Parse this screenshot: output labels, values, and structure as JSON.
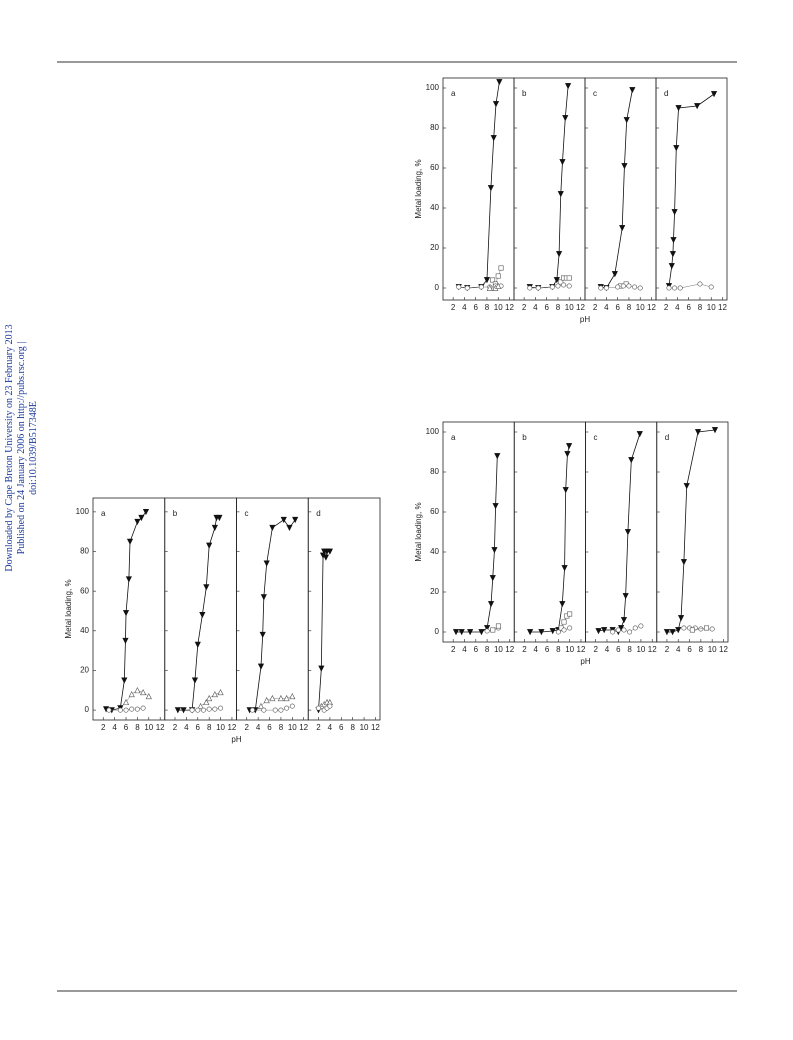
{
  "side_text": [
    "Downloaded by Cape Breton University on 23 February 2013",
    "Published on 24 January 2006 on http://pubs.rsc.org | doi:10.1039/B517348E"
  ],
  "chart_data": [
    {
      "type": "line",
      "ylabel": "Metal loading, %",
      "xlabel": "pH",
      "ylim": [
        -6,
        105
      ],
      "xlim": [
        0.2,
        12.8
      ],
      "yticks": [
        0,
        20,
        40,
        60,
        80,
        100
      ],
      "xticks": [
        2,
        4,
        6,
        8,
        10,
        12
      ],
      "panels": [
        {
          "label": "a",
          "series": [
            {
              "marker": "down-triangle-filled",
              "x": [
                3,
                4.5,
                7,
                8,
                8.7,
                9.2,
                9.6,
                10.2
              ],
              "values": [
                0.5,
                0,
                0.5,
                4,
                50,
                75,
                92,
                103
              ]
            },
            {
              "marker": "square-open",
              "x": [
                9,
                9.5,
                10,
                10.5
              ],
              "values": [
                4,
                2,
                6,
                10
              ]
            },
            {
              "marker": "circle-open",
              "x": [
                3,
                4.5,
                7,
                8.5,
                9.5,
                10.5
              ],
              "values": [
                0.5,
                0,
                0.5,
                0.5,
                1,
                1
              ]
            },
            {
              "marker": "up-triangle-open",
              "x": [
                8.5,
                9.5,
                10
              ],
              "values": [
                0,
                0,
                1
              ]
            }
          ]
        },
        {
          "label": "b",
          "series": [
            {
              "marker": "down-triangle-filled",
              "x": [
                3,
                4.5,
                7,
                7.8,
                8.2,
                8.5,
                8.8,
                9.3,
                9.8
              ],
              "values": [
                0.5,
                0,
                0.5,
                4,
                17,
                47,
                63,
                85,
                101
              ]
            },
            {
              "marker": "square-open",
              "x": [
                8.5,
                9,
                9.5,
                10
              ],
              "values": [
                3,
                5,
                5,
                5
              ]
            },
            {
              "marker": "circle-open",
              "x": [
                3,
                4.5,
                7,
                8,
                9,
                10
              ],
              "values": [
                0,
                0,
                0.5,
                1,
                1.5,
                1
              ]
            }
          ]
        },
        {
          "label": "c",
          "series": [
            {
              "marker": "down-triangle-filled",
              "x": [
                3,
                4,
                5.5,
                6.8,
                7.2,
                7.6,
                8.6
              ],
              "values": [
                0.5,
                0,
                7,
                30,
                61,
                84,
                99
              ]
            },
            {
              "marker": "square-open",
              "x": [
                6.5,
                7.5
              ],
              "values": [
                1,
                2
              ]
            },
            {
              "marker": "circle-open",
              "x": [
                3,
                4,
                6,
                7,
                8,
                9,
                10
              ],
              "values": [
                0,
                0,
                0.5,
                1,
                1,
                0.5,
                0
              ]
            }
          ]
        },
        {
          "label": "d",
          "series": [
            {
              "marker": "down-triangle-filled",
              "x": [
                2.5,
                3,
                3.2,
                3.3,
                3.5,
                3.8,
                4.2,
                7.5,
                10.5
              ],
              "values": [
                1,
                11,
                17,
                24,
                38,
                70,
                90,
                91,
                97
              ]
            },
            {
              "marker": "circle-open",
              "x": [
                2.5,
                3.5,
                4.5,
                8,
                10
              ],
              "values": [
                0,
                0,
                0,
                2,
                0.5
              ]
            }
          ]
        }
      ]
    },
    {
      "type": "line",
      "ylabel": "Metal loading, %",
      "xlabel": "pH",
      "ylim": [
        -5,
        107
      ],
      "xlim": [
        0.2,
        12.8
      ],
      "yticks": [
        0,
        20,
        40,
        60,
        80,
        100
      ],
      "xticks": [
        2,
        4,
        6,
        8,
        10,
        12
      ],
      "panels": [
        {
          "label": "a",
          "series": [
            {
              "marker": "down-triangle-filled",
              "x": [
                2.5,
                3.5,
                5,
                5.7,
                5.9,
                6,
                6.5,
                6.7,
                8,
                8.7,
                9.5
              ],
              "values": [
                0.5,
                0,
                1,
                15,
                35,
                49,
                66,
                85,
                95,
                97,
                100
              ]
            },
            {
              "marker": "up-triangle-open",
              "x": [
                6,
                7,
                8,
                9,
                10
              ],
              "values": [
                4,
                8,
                10,
                9,
                7
              ]
            },
            {
              "marker": "circle-open",
              "x": [
                3,
                5,
                6,
                7,
                8,
                9
              ],
              "values": [
                0,
                0,
                0,
                0.5,
                0.5,
                1
              ]
            }
          ]
        },
        {
          "label": "b",
          "series": [
            {
              "marker": "down-triangle-filled",
              "x": [
                2.5,
                3.5,
                5,
                5.5,
                6,
                6.8,
                7.5,
                8,
                9,
                9.3,
                9.8
              ],
              "values": [
                0,
                0,
                0,
                15,
                33,
                48,
                62,
                83,
                92,
                97,
                97
              ]
            },
            {
              "marker": "up-triangle-open",
              "x": [
                6.5,
                7.5,
                8,
                9,
                10
              ],
              "values": [
                2,
                4,
                6,
                8,
                9
              ]
            },
            {
              "marker": "circle-open",
              "x": [
                5,
                6,
                7,
                8,
                9,
                10
              ],
              "values": [
                0,
                0,
                0,
                0.5,
                0.5,
                1
              ]
            }
          ]
        },
        {
          "label": "c",
          "series": [
            {
              "marker": "down-triangle-filled",
              "x": [
                2.5,
                3.5,
                4.5,
                4.8,
                5,
                5.5,
                6.5,
                8.5,
                9.5,
                10.5
              ],
              "values": [
                0,
                0,
                22,
                38,
                57,
                74,
                92,
                96,
                92,
                96
              ]
            },
            {
              "marker": "up-triangle-open",
              "x": [
                4.5,
                5.5,
                6.5,
                8,
                9,
                10
              ],
              "values": [
                2,
                5,
                6,
                6,
                6,
                7
              ]
            },
            {
              "marker": "circle-open",
              "x": [
                3,
                5,
                7,
                8,
                9,
                10
              ],
              "values": [
                0,
                0,
                0,
                0,
                1,
                2
              ]
            }
          ]
        },
        {
          "label": "d",
          "series": [
            {
              "marker": "down-triangle-filled",
              "x": [
                2,
                2.5,
                2.8,
                3,
                3.3,
                3.5,
                4
              ],
              "values": [
                0,
                21,
                78,
                80,
                77,
                80,
                80
              ]
            },
            {
              "marker": "up-triangle-open",
              "x": [
                2.5,
                3,
                3.5,
                4
              ],
              "values": [
                2,
                3,
                4,
                4
              ]
            },
            {
              "marker": "circle-open",
              "x": [
                2,
                3,
                3.5,
                4
              ],
              "values": [
                1,
                0,
                1,
                2
              ]
            }
          ]
        }
      ]
    },
    {
      "type": "line",
      "ylabel": "Metal loading, %",
      "xlabel": "pH",
      "ylim": [
        -5,
        105
      ],
      "xlim": [
        0.2,
        12.8
      ],
      "yticks": [
        0,
        20,
        40,
        60,
        80,
        100
      ],
      "xticks": [
        2,
        4,
        6,
        8,
        10,
        12
      ],
      "panels": [
        {
          "label": "a",
          "series": [
            {
              "marker": "down-triangle-filled",
              "x": [
                2.5,
                3.5,
                5,
                7,
                8,
                8.7,
                9,
                9.3,
                9.5,
                9.8
              ],
              "values": [
                0,
                0,
                0,
                0,
                2,
                14,
                27,
                41,
                63,
                88
              ]
            },
            {
              "marker": "circle-open",
              "x": [
                8,
                9,
                10
              ],
              "values": [
                0.5,
                1,
                2
              ]
            },
            {
              "marker": "square-open",
              "x": [
                9,
                10
              ],
              "values": [
                1,
                3
              ]
            }
          ]
        },
        {
          "label": "b",
          "series": [
            {
              "marker": "down-triangle-filled",
              "x": [
                3,
                5,
                7,
                8,
                8.7,
                9.1,
                9.3,
                9.6,
                9.9
              ],
              "values": [
                0,
                0,
                0.5,
                1,
                14,
                32,
                71,
                89,
                93
              ]
            },
            {
              "marker": "square-open",
              "x": [
                8.5,
                9,
                9.5,
                10
              ],
              "values": [
                2,
                5,
                8,
                9
              ]
            },
            {
              "marker": "circle-open",
              "x": [
                8,
                9,
                10
              ],
              "values": [
                0,
                1,
                2
              ]
            }
          ]
        },
        {
          "label": "c",
          "series": [
            {
              "marker": "down-triangle-filled",
              "x": [
                2.5,
                3.5,
                5,
                6,
                6.5,
                7,
                7.3,
                7.7,
                8.3,
                9.8
              ],
              "values": [
                0.5,
                1,
                1,
                0,
                2,
                6,
                18,
                50,
                86,
                99
              ]
            },
            {
              "marker": "circle-open",
              "x": [
                5,
                6,
                7,
                8,
                9,
                10
              ],
              "values": [
                0,
                1,
                1,
                0,
                2,
                3
              ]
            }
          ]
        },
        {
          "label": "d",
          "series": [
            {
              "marker": "down-triangle-filled",
              "x": [
                2,
                3,
                4,
                4.5,
                5,
                5.5,
                7.5,
                10.5
              ],
              "values": [
                0,
                0,
                1,
                7,
                35,
                73,
                100,
                101
              ]
            },
            {
              "marker": "circle-open",
              "x": [
                5,
                6,
                7,
                8,
                10
              ],
              "values": [
                2,
                2,
                2,
                1.5,
                1.5
              ]
            },
            {
              "marker": "square-open",
              "x": [
                6.5,
                9
              ],
              "values": [
                1,
                2
              ]
            }
          ]
        }
      ]
    }
  ]
}
